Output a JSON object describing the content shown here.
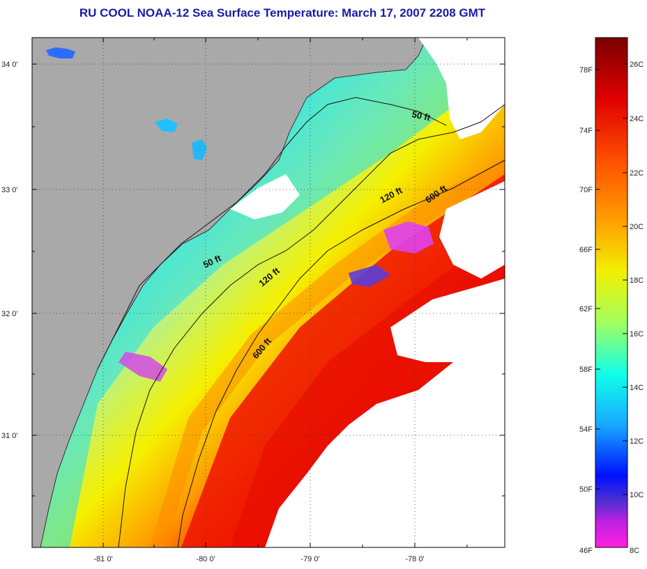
{
  "title": "RU COOL  NOAA-12  Sea Surface Temperature:  March 17, 2007 2208 GMT",
  "map": {
    "lat_labels": [
      "34 0'",
      "33 0'",
      "32 0'",
      "31 0'"
    ],
    "lon_labels": [
      "-81 0'",
      "-80 0'",
      "-79 0'",
      "-78 0'"
    ],
    "contours": [
      {
        "label": "50 ft"
      },
      {
        "label": "50 ft"
      },
      {
        "label": "120 ft"
      },
      {
        "label": "120 ft"
      },
      {
        "label": "600 ft"
      },
      {
        "label": "600 ft"
      }
    ],
    "colors": {
      "land": "#a9a9a9",
      "cloud": "#ffffff",
      "coast": "#111111"
    }
  },
  "colorbar": {
    "fahrenheit_labels": [
      "78F",
      "74F",
      "70F",
      "66F",
      "62F",
      "58F",
      "54F",
      "50F",
      "46F"
    ],
    "celsius_labels": [
      "26C",
      "24C",
      "22C",
      "20C",
      "18C",
      "16C",
      "14C",
      "12C",
      "10C",
      "8C"
    ]
  }
}
